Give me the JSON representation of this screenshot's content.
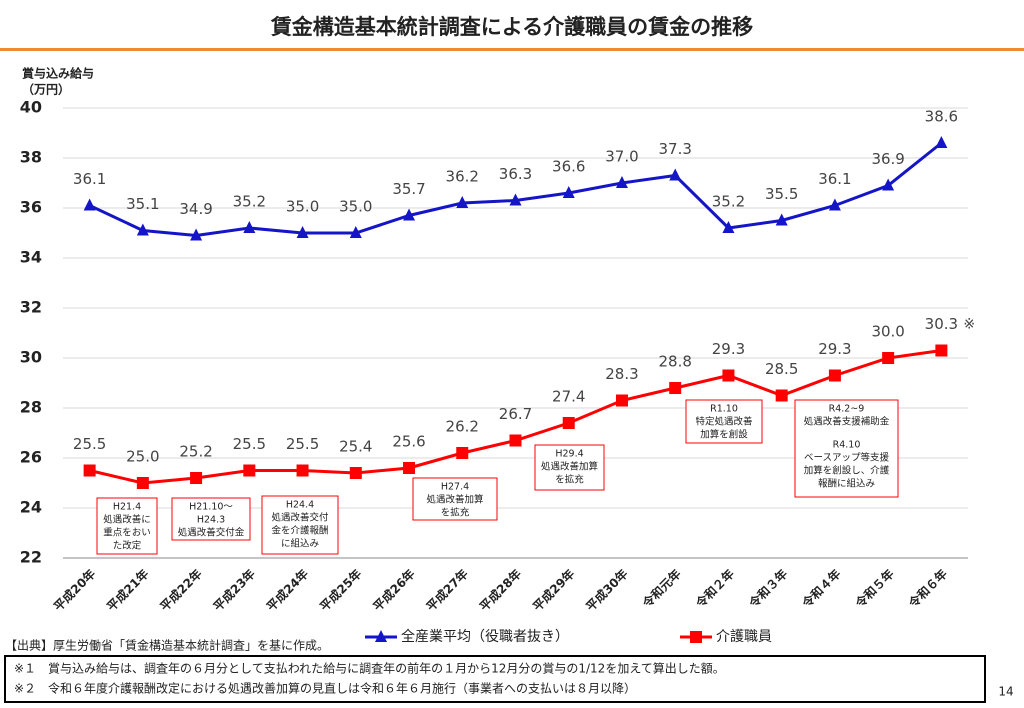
{
  "title": "賃金構造基本統計調査による介護職員の賃金の推移",
  "page_number": "14",
  "source": "【出典】厚生労働省「賃金構造基本統計調査」を基に作成。",
  "footnotes": [
    "※１　賞与込み給与は、調査年の６月分として支払われた給与に調査年の前年の１月から12月分の賞与の1/12を加えて算出した額。",
    "※２　令和６年度介護報酬改定における処遇改善加算の見直しは令和６年６月施行（事業者への支払いは８月以降）"
  ],
  "chart_data": {
    "type": "line",
    "y_label": [
      "賞与込み給与",
      "（万円）"
    ],
    "categories": [
      "平成20年",
      "平成21年",
      "平成22年",
      "平成23年",
      "平成24年",
      "平成25年",
      "平成26年",
      "平成27年",
      "平成28年",
      "平成29年",
      "平成30年",
      "令和元年",
      "令和２年",
      "令和３年",
      "令和４年",
      "令和５年",
      "令和６年"
    ],
    "ylim": [
      22,
      40
    ],
    "yticks": [
      22,
      24,
      26,
      28,
      30,
      32,
      34,
      36,
      38,
      40
    ],
    "grid": true,
    "series": [
      {
        "name": "全産業平均（役職者抜き）",
        "color": "#1515c8",
        "marker": "triangle",
        "values": [
          36.1,
          35.1,
          34.9,
          35.2,
          35.0,
          35.0,
          35.7,
          36.2,
          36.3,
          36.6,
          37.0,
          37.3,
          35.2,
          35.5,
          36.1,
          36.9,
          38.6
        ],
        "value_labels": [
          "36.1",
          "35.1",
          "34.9",
          "35.2",
          "35.0",
          "35.0",
          "35.7",
          "36.2",
          "36.3",
          "36.6",
          "37.0",
          "37.3",
          "35.2",
          "35.5",
          "36.1",
          "36.9",
          "38.6"
        ]
      },
      {
        "name": "介護職員",
        "color": "#ff0000",
        "marker": "square",
        "values": [
          25.5,
          25.0,
          25.2,
          25.5,
          25.5,
          25.4,
          25.6,
          26.2,
          26.7,
          27.4,
          28.3,
          28.8,
          29.3,
          28.5,
          29.3,
          30.0,
          30.3
        ],
        "value_labels": [
          "25.5",
          "25.0",
          "25.2",
          "25.5",
          "25.5",
          "25.4",
          "25.6",
          "26.2",
          "26.7",
          "27.4",
          "28.3",
          "28.8",
          "29.3",
          "28.5",
          "29.3",
          "30.0",
          "30.3"
        ]
      }
    ],
    "last_point_mark": "※",
    "annotations": [
      {
        "paragraphs": [
          [
            "H21.4",
            "処遇改善に",
            "重点をおい",
            "た改定"
          ]
        ]
      },
      {
        "paragraphs": [
          [
            "H21.10～",
            "H24.3",
            "処遇改善交付金"
          ]
        ]
      },
      {
        "paragraphs": [
          [
            "H24.4",
            "処遇改善交付",
            "金を介護報酬",
            "に組込み"
          ]
        ]
      },
      {
        "paragraphs": [
          [
            "H27.4",
            "処遇改善加算",
            "を拡充"
          ]
        ]
      },
      {
        "paragraphs": [
          [
            "H29.4",
            "処遇改善加算",
            "を拡充"
          ]
        ]
      },
      {
        "paragraphs": [
          [
            "R1.10",
            "特定処遇改善",
            "加算を創設"
          ]
        ]
      },
      {
        "paragraphs": [
          [
            "R4.2~9",
            "処遇改善支援補助金"
          ],
          [
            "R4.10",
            "ベースアップ等支援",
            "加算を創設し、介護",
            "報酬に組込み"
          ]
        ]
      }
    ]
  }
}
